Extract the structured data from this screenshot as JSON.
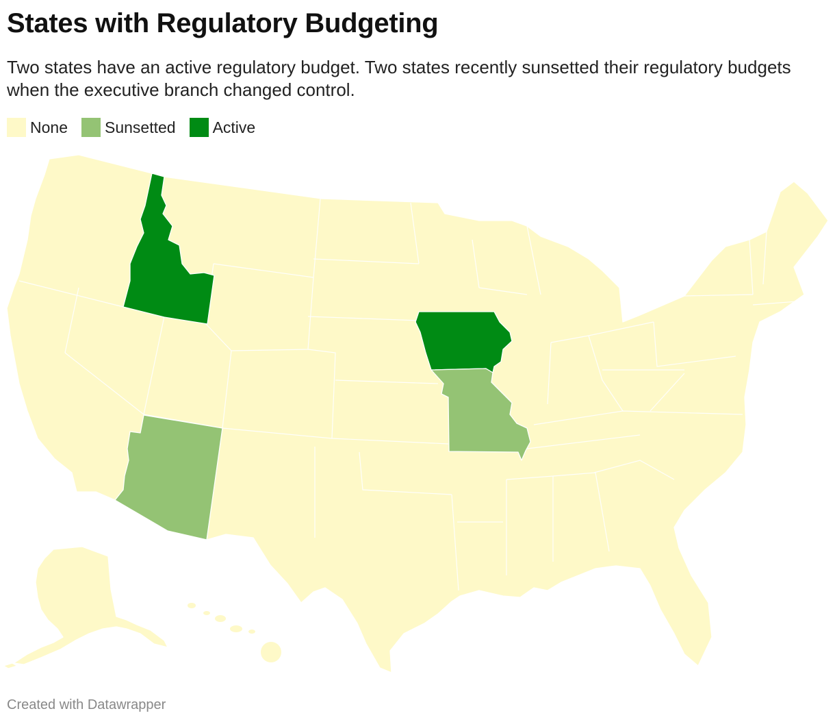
{
  "title": "States with Regulatory Budgeting",
  "subtitle": "Two states have an active regulatory budget. Two states recently sunsetted their regulatory budgets when the executive branch changed control.",
  "legend": [
    {
      "label": "None",
      "color": "#fef9c8"
    },
    {
      "label": "Sunsetted",
      "color": "#94c374"
    },
    {
      "label": "Active",
      "color": "#008b14"
    }
  ],
  "map": {
    "active_states": [
      "Idaho",
      "Iowa"
    ],
    "sunsetted_states": [
      "Arizona",
      "Missouri"
    ]
  },
  "footer": "Created with Datawrapper"
}
